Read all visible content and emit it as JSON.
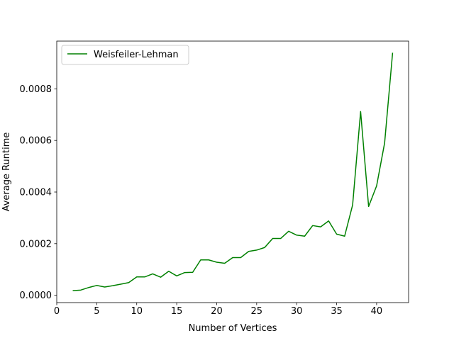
{
  "chart_data": {
    "type": "line",
    "title": "",
    "xlabel": "Number of Vertices",
    "ylabel": "Average Runtime",
    "xlim": [
      0,
      44
    ],
    "ylim": [
      -2.85e-05,
      0.000985
    ],
    "xticks": [
      0,
      5,
      10,
      15,
      20,
      25,
      30,
      35,
      40
    ],
    "xtick_labels": [
      "0",
      "5",
      "10",
      "15",
      "20",
      "25",
      "30",
      "35",
      "40"
    ],
    "yticks": [
      0,
      0.0002,
      0.0004,
      0.0006,
      0.0008
    ],
    "ytick_labels": [
      "0.0000",
      "0.0002",
      "0.0004",
      "0.0006",
      "0.0008"
    ],
    "grid": false,
    "legend_position": "upper-left",
    "series": [
      {
        "name": "Weisfeiler-Lehman",
        "color": "#008000",
        "x": [
          2,
          3,
          4,
          5,
          6,
          7,
          8,
          9,
          10,
          11,
          12,
          13,
          14,
          15,
          16,
          17,
          18,
          19,
          20,
          21,
          22,
          23,
          24,
          25,
          26,
          27,
          28,
          29,
          30,
          31,
          32,
          33,
          34,
          35,
          36,
          37,
          38,
          39,
          40,
          41,
          42
        ],
        "y": [
          1.8e-05,
          2e-05,
          3e-05,
          3.8e-05,
          3.2e-05,
          3.7e-05,
          4.3e-05,
          4.9e-05,
          7.1e-05,
          7.1e-05,
          8.3e-05,
          7e-05,
          9.3e-05,
          7.5e-05,
          8.8e-05,
          8.9e-05,
          0.000137,
          0.000137,
          0.000128,
          0.000124,
          0.000146,
          0.000146,
          0.00017,
          0.000175,
          0.000185,
          0.00022,
          0.00022,
          0.000248,
          0.000233,
          0.000229,
          0.00027,
          0.000265,
          0.000288,
          0.000237,
          0.000229,
          0.00035,
          0.000712,
          0.000344,
          0.000424,
          0.00059,
          0.00094
        ]
      }
    ]
  }
}
